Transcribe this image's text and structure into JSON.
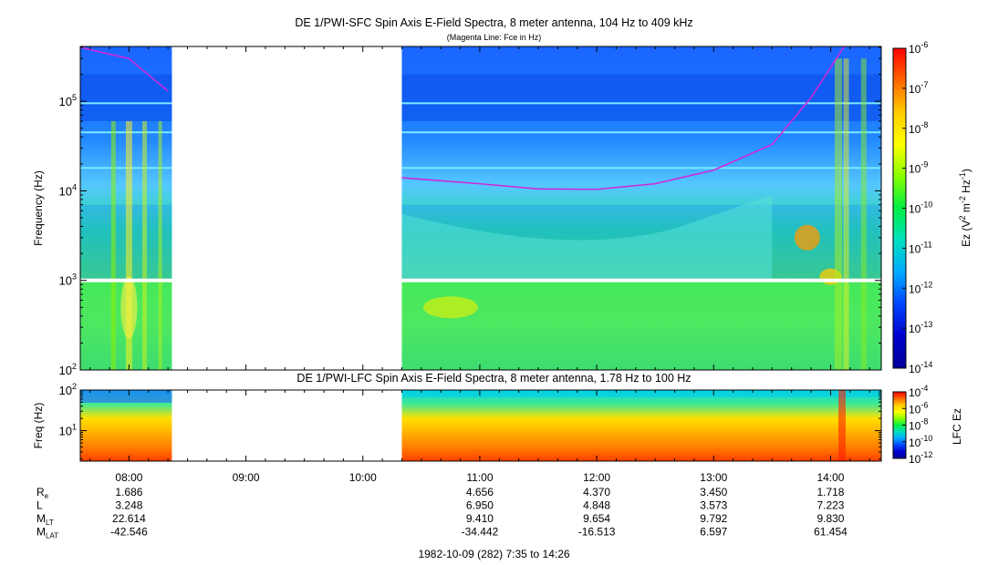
{
  "chart_data": [
    {
      "type": "heatmap",
      "title": "DE 1/PWI-SFC  Spin Axis E-Field Spectra, 8 meter antenna, 104 Hz to 409 kHz",
      "subtitle": "(Magenta Line: Fce in Hz)",
      "ylabel": "Frequency (Hz)",
      "yscale": "log",
      "ylim": [
        100,
        409000
      ],
      "yticks": [
        {
          "v": 100,
          "e": "2"
        },
        {
          "v": 1000,
          "e": "3"
        },
        {
          "v": 10000,
          "e": "4"
        },
        {
          "v": 100000,
          "e": "5"
        }
      ],
      "xlim": [
        "07:35",
        "14:26"
      ],
      "data_gap": [
        "08:22",
        "10:20"
      ],
      "colorbar": {
        "label_parts": [
          "Ez (V",
          "2",
          " m",
          "-2",
          " Hz",
          "-1",
          ")"
        ],
        "scale": "log",
        "range": [
          1e-14,
          1e-06
        ],
        "ticks": [
          "-6",
          "-7",
          "-8",
          "-9",
          "-10",
          "-11",
          "-12",
          "-13",
          "-14"
        ],
        "colors": [
          "#ff0000",
          "#ff6600",
          "#ffcc00",
          "#ffff00",
          "#88ff00",
          "#00ee44",
          "#00e0c0",
          "#00aaff",
          "#0044ff",
          "#0000cc",
          "#000099"
        ]
      },
      "fce_line": {
        "color": "#d028d8",
        "segments": [
          [
            [
              "07:35",
              400000
            ],
            [
              "08:00",
              300000
            ],
            [
              "08:20",
              130000
            ]
          ],
          [
            [
              "10:20",
              14000
            ],
            [
              "11:00",
              12000
            ],
            [
              "11:30",
              10500
            ],
            [
              "12:00",
              10400
            ],
            [
              "12:30",
              12000
            ],
            [
              "13:00",
              17000
            ],
            [
              "13:30",
              33000
            ],
            [
              "13:50",
              110000
            ],
            [
              "14:07",
              420000
            ]
          ]
        ]
      }
    },
    {
      "type": "heatmap",
      "title": "DE 1/PWI-LFC  Spin Axis E-Field Spectra, 8 meter antenna, 1.78 Hz to 100 Hz",
      "ylabel": "Freq (Hz)",
      "yscale": "log",
      "ylim": [
        1.78,
        100
      ],
      "yticks": [
        {
          "v": 10,
          "e": "1"
        },
        {
          "v": 100,
          "e": "2"
        }
      ],
      "xlim": [
        "07:35",
        "14:26"
      ],
      "data_gap": [
        "08:22",
        "10:20"
      ],
      "colorbar": {
        "label": "LFC Ez",
        "scale": "log",
        "range": [
          1e-12,
          0.0001
        ],
        "ticks": [
          "-4",
          "-6",
          "-8",
          "-10",
          "-12"
        ],
        "colors": [
          "#ff0000",
          "#ff6600",
          "#ffcc00",
          "#ffff00",
          "#88ff00",
          "#00ee44",
          "#00e0c0",
          "#00aaff",
          "#0044ff",
          "#0000cc",
          "#000099"
        ]
      },
      "x_tick_labels": [
        "08:00",
        "09:00",
        "10:00",
        "11:00",
        "12:00",
        "13:00",
        "14:00"
      ]
    }
  ],
  "ephemeris": {
    "rows": [
      {
        "label": "R",
        "sub": "e",
        "values": [
          "1.686",
          "",
          "",
          "4.656",
          "4.370",
          "3.450",
          "1.718"
        ]
      },
      {
        "label": "L",
        "sub": "",
        "values": [
          "3.248",
          "",
          "",
          "6.950",
          "4.848",
          "3.573",
          "7.223"
        ]
      },
      {
        "label": "M",
        "sub": "LT",
        "values": [
          "22.614",
          "",
          "",
          "9.410",
          "9.654",
          "9.792",
          "9.830"
        ]
      },
      {
        "label": "M",
        "sub": "LAT",
        "values": [
          "-42.546",
          "",
          "",
          "-34.442",
          "-16.513",
          "6.597",
          "61.454"
        ]
      }
    ]
  },
  "date_range": "1982-10-09 (282) 7:35 to 14:26"
}
